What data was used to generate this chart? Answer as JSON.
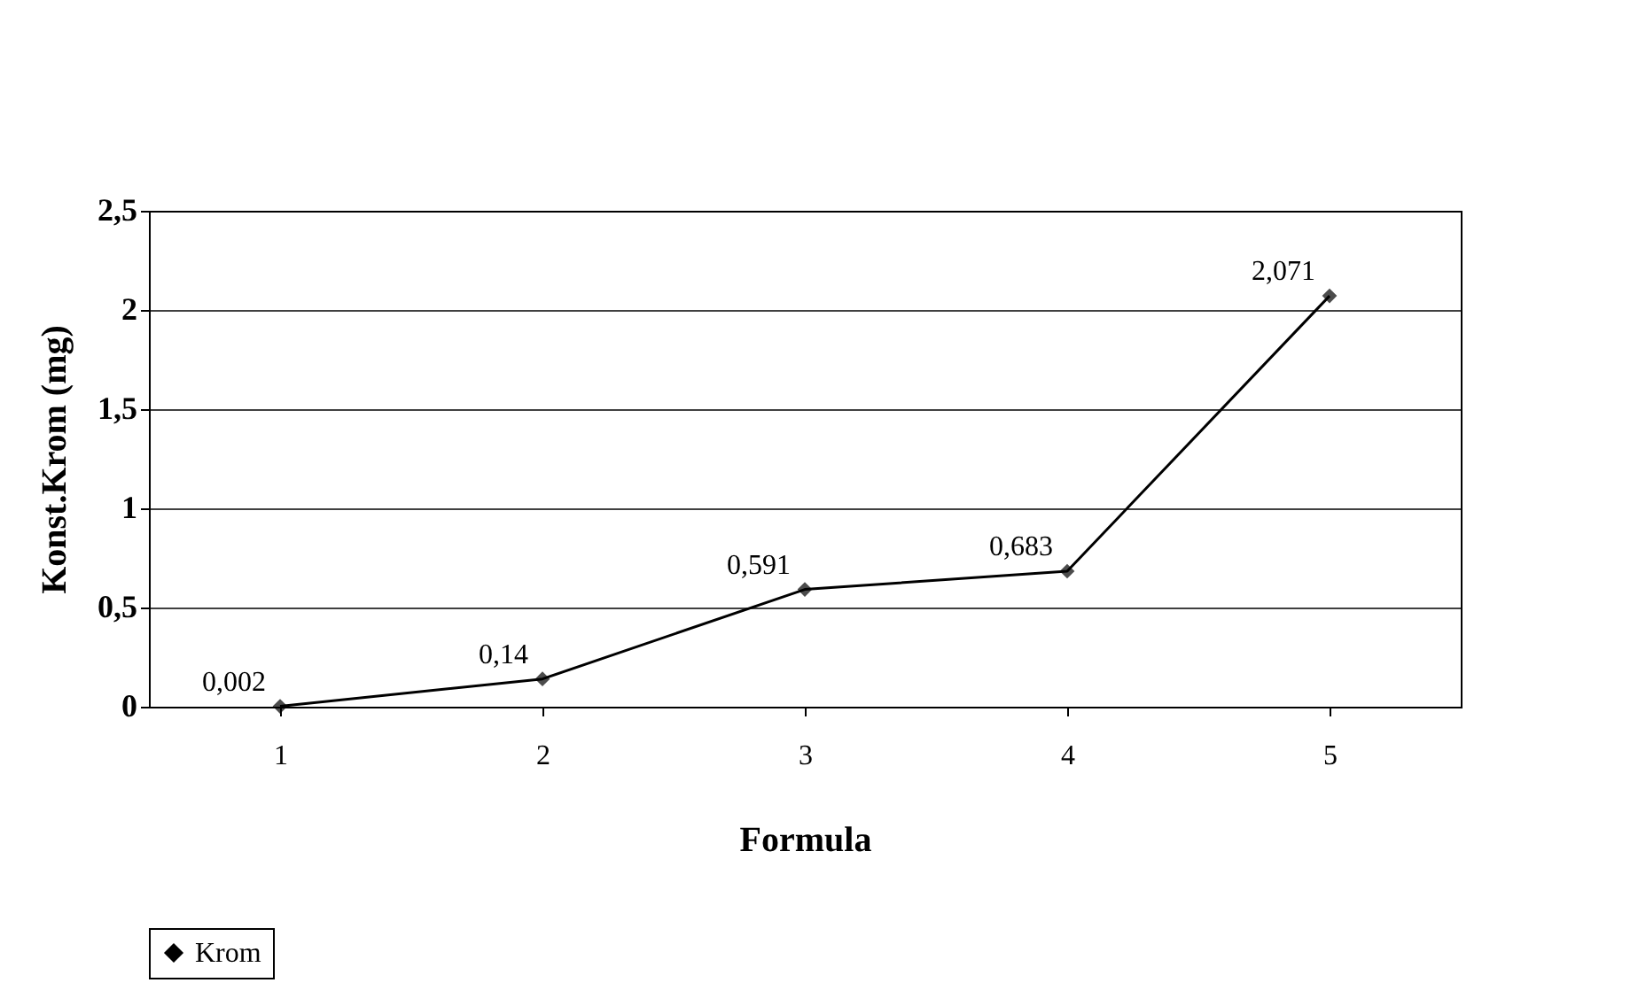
{
  "chart_data": {
    "type": "line",
    "xlabel": "Formula",
    "ylabel": "Konst.Krom (mg)",
    "categories": [
      "1",
      "2",
      "3",
      "4",
      "5"
    ],
    "series": [
      {
        "name": "Krom",
        "color": "#000000",
        "values": [
          0.002,
          0.14,
          0.591,
          0.683,
          2.071
        ],
        "value_labels": [
          "0,002",
          "0,14",
          "0,591",
          "0,683",
          "2,071"
        ]
      }
    ],
    "ylim": [
      0,
      2.5
    ],
    "yticks": [
      {
        "value": 0,
        "label": "0"
      },
      {
        "value": 0.5,
        "label": "0,5"
      },
      {
        "value": 1,
        "label": "1"
      },
      {
        "value": 1.5,
        "label": "1,5"
      },
      {
        "value": 2,
        "label": "2"
      },
      {
        "value": 2.5,
        "label": "2,5"
      }
    ],
    "grid": "y",
    "legend": "bottom",
    "marker": "diamond",
    "line_style": "solid"
  }
}
